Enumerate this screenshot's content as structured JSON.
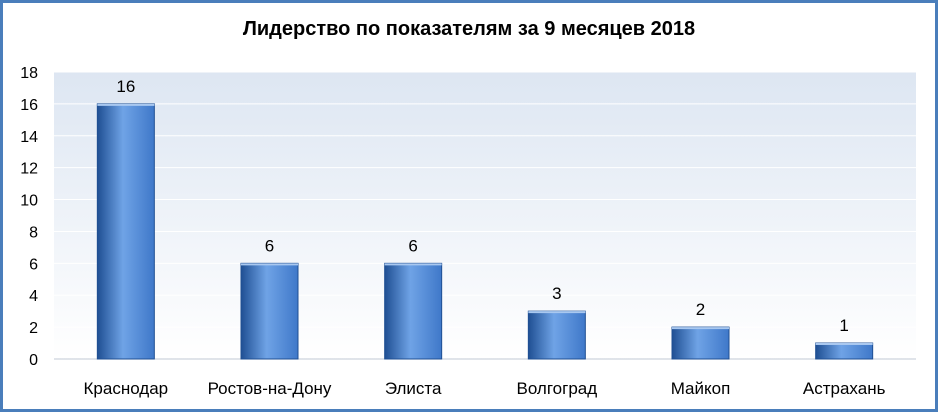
{
  "chart_data": {
    "type": "bar",
    "title": "Лидерство по показателям за 9 месяцев 2018",
    "categories": [
      "Краснодар",
      "Ростов-на-Дону",
      "Элиста",
      "Волгоград",
      "Майкоп",
      "Астрахань"
    ],
    "values": [
      16,
      6,
      6,
      3,
      2,
      1
    ],
    "ylim": [
      0,
      18
    ],
    "yticks": [
      0,
      2,
      4,
      6,
      8,
      10,
      12,
      14,
      16,
      18
    ],
    "xlabel": "",
    "ylabel": "",
    "grid": true,
    "legend": "none",
    "colors": {
      "bar_light": "#6fa3e6",
      "bar_mid": "#3f78c9",
      "bar_dark": "#1f4f93",
      "plot_bg_top": "#dde6f2",
      "plot_bg_bottom": "#ffffff",
      "grid": "#ffffff",
      "frame": "#4a7ebb"
    }
  }
}
